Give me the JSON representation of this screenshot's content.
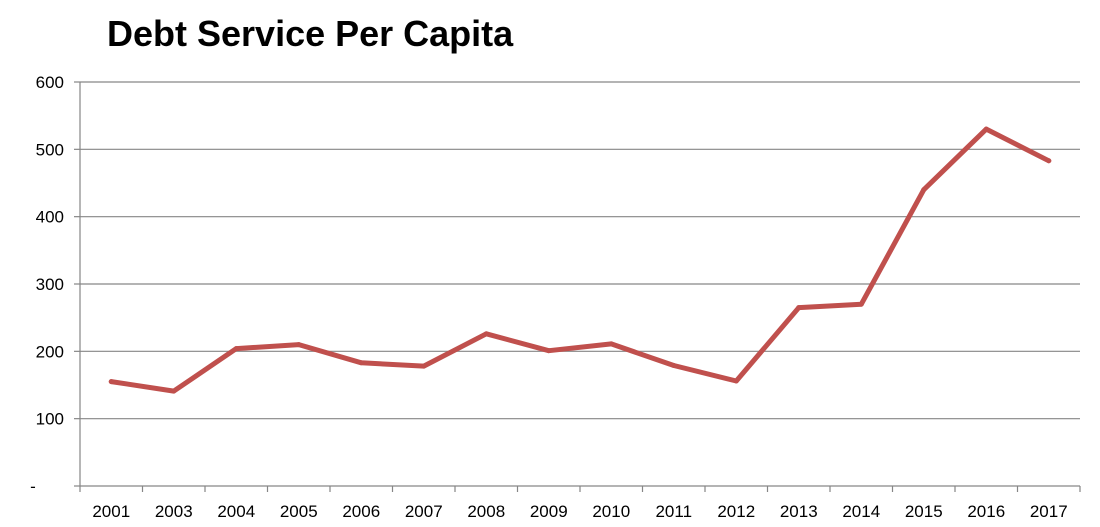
{
  "chart_data": {
    "type": "line",
    "title": "Debt Service Per Capita",
    "xlabel": "",
    "ylabel": "",
    "categories": [
      "2001",
      "2003",
      "2004",
      "2005",
      "2006",
      "2007",
      "2008",
      "2009",
      "2010",
      "2011",
      "2012",
      "2013",
      "2014",
      "2015",
      "2016",
      "2017"
    ],
    "series": [
      {
        "values": [
          155,
          141,
          204,
          210,
          183,
          178,
          226,
          201,
          211,
          179,
          156,
          265,
          270,
          440,
          530,
          483
        ]
      }
    ],
    "ylim": [
      0,
      600
    ],
    "yticks": [
      0,
      100,
      200,
      300,
      400,
      500,
      600
    ],
    "ytick_labels": [
      "-",
      "100",
      "200",
      "300",
      "400",
      "500",
      "600"
    ],
    "grid": true,
    "legend": "none",
    "colors": {
      "line": "#C0504D",
      "grid": "#868686",
      "axis": "#868686"
    }
  }
}
